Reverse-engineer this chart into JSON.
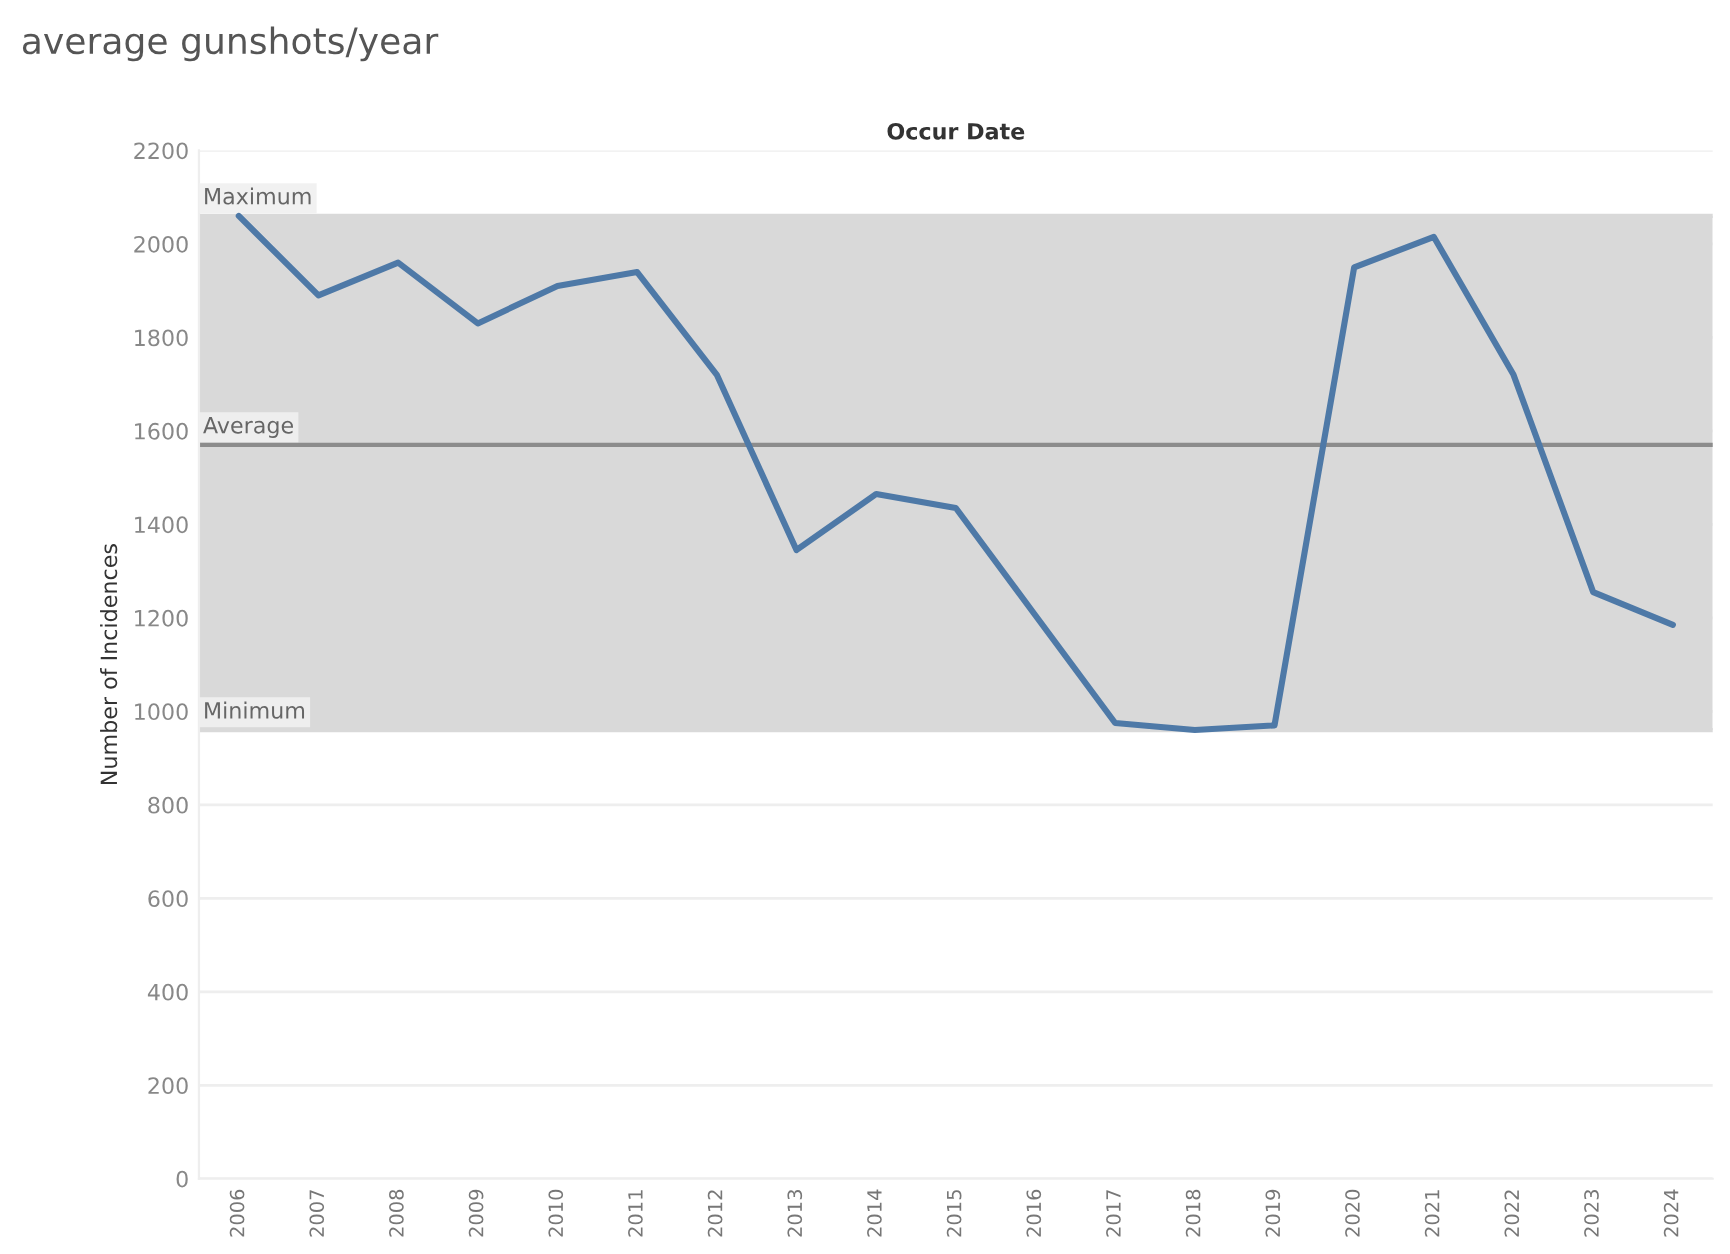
{
  "chart_data": {
    "type": "line",
    "title": "average gunshots/year",
    "xlabel": "Occur Date",
    "ylabel": "Number of Incidences",
    "categories": [
      "2006",
      "2007",
      "2008",
      "2009",
      "2010",
      "2011",
      "2012",
      "2013",
      "2014",
      "2015",
      "2016",
      "2017",
      "2018",
      "2019",
      "2020",
      "2021",
      "2022",
      "2023",
      "2024"
    ],
    "series": [
      {
        "color": "#4e79a7",
        "values": [
          2060,
          1890,
          1960,
          1830,
          1910,
          1940,
          1720,
          1345,
          1465,
          1435,
          1205,
          975,
          960,
          970,
          1950,
          2015,
          1720,
          1255,
          1185
        ]
      }
    ],
    "ylim": [
      0,
      2200
    ],
    "yticks": [
      0,
      200,
      400,
      600,
      800,
      1000,
      1200,
      1400,
      1600,
      1800,
      2000,
      2200
    ],
    "bands": [
      {
        "axis": "y",
        "from": 960,
        "to": 2060,
        "color": "#d9d9d9"
      }
    ],
    "ref_lines": [
      {
        "axis": "y",
        "value": 2060,
        "label": "Maximum",
        "color": "#d9d9d9"
      },
      {
        "axis": "y",
        "value": 1570,
        "label": "Average",
        "color": "#8c8c8c"
      },
      {
        "axis": "y",
        "value": 960,
        "label": "Minimum",
        "color": "#d9d9d9"
      }
    ],
    "grid": "y",
    "marker": "none",
    "line_style": "solid"
  }
}
